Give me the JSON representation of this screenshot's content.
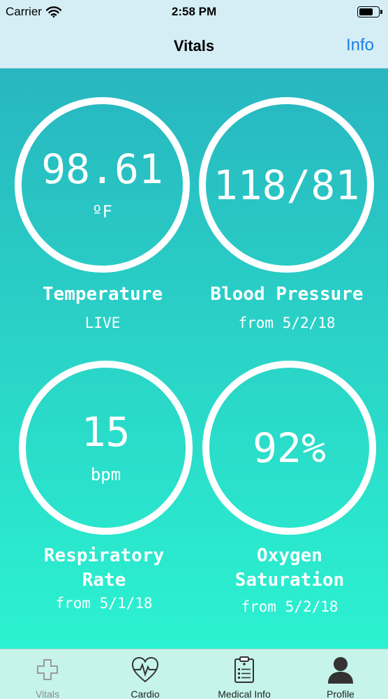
{
  "status": {
    "carrier": "Carrier",
    "time": "2:58 PM",
    "battery_level": 0.75
  },
  "nav": {
    "title": "Vitals",
    "info_label": "Info"
  },
  "vitals": {
    "temperature": {
      "value": "98.61",
      "unit": "ºF",
      "label": "Temperature",
      "sub": "LIVE"
    },
    "blood_pressure": {
      "value": "118/81",
      "label": "Blood Pressure",
      "sub": "from 5/2/18"
    },
    "respiratory_rate": {
      "value": "15",
      "unit": "bpm",
      "label_line1": "Respiratory",
      "label_line2": "Rate",
      "sub": "from 5/1/18"
    },
    "oxygen_saturation": {
      "value": "92%",
      "label_line1": "Oxygen",
      "label_line2": "Saturation",
      "sub": "from 5/2/18"
    }
  },
  "tabs": [
    {
      "label": "Vitals",
      "icon": "medical-cross-icon"
    },
    {
      "label": "Cardio",
      "icon": "heart-pulse-icon"
    },
    {
      "label": "Medical Info",
      "icon": "clipboard-icon"
    },
    {
      "label": "Profile",
      "icon": "person-icon"
    }
  ],
  "colors": {
    "accent": "#1a7ff2",
    "gradient_top": "#28b6c0",
    "gradient_bottom": "#2bf2d1",
    "tab_bar": "#c6f4ea"
  }
}
